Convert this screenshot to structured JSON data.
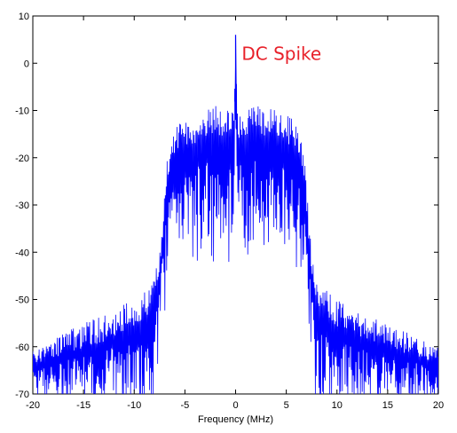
{
  "chart_data": {
    "type": "line",
    "xlabel": "Frequency (MHz)",
    "ylabel": "",
    "title": "",
    "xlim": [
      -20,
      20
    ],
    "ylim": [
      -70,
      10
    ],
    "xticks": [
      -20,
      -15,
      -10,
      -5,
      0,
      5,
      10,
      15,
      20
    ],
    "yticks": [
      10,
      0,
      -10,
      -20,
      -30,
      -40,
      -50,
      -60,
      -70
    ],
    "grid": false,
    "line_color": "#0000ff",
    "annotation": {
      "text": "DC Spike",
      "x": 0.6,
      "y": 2,
      "color": "#e8212a"
    },
    "envelope": {
      "x": [
        -20,
        -17,
        -14,
        -12,
        -10,
        -9,
        -8,
        -7.6,
        -7.2,
        -6.8,
        -6.4,
        -6,
        -4,
        -2,
        -0.2,
        0,
        0.2,
        2,
        4,
        6,
        6.4,
        6.8,
        7.2,
        7.6,
        8,
        9,
        10,
        12,
        14,
        17,
        20
      ],
      "upper": [
        -61,
        -57,
        -54,
        -52,
        -50,
        -48,
        -46,
        -40,
        -32,
        -20,
        -16,
        -13,
        -11,
        -9,
        -10,
        6,
        -10,
        -9,
        -10,
        -12,
        -14,
        -20,
        -32,
        -40,
        -46,
        -48,
        -50,
        -52,
        -54,
        -57,
        -60
      ],
      "lower": [
        -70,
        -70,
        -70,
        -70,
        -70,
        -70,
        -70,
        -60,
        -50,
        -42,
        -38,
        -36,
        -35,
        -34,
        -35,
        -10,
        -35,
        -34,
        -35,
        -36,
        -38,
        -42,
        -50,
        -60,
        -70,
        -70,
        -70,
        -70,
        -70,
        -70,
        -70
      ]
    }
  }
}
